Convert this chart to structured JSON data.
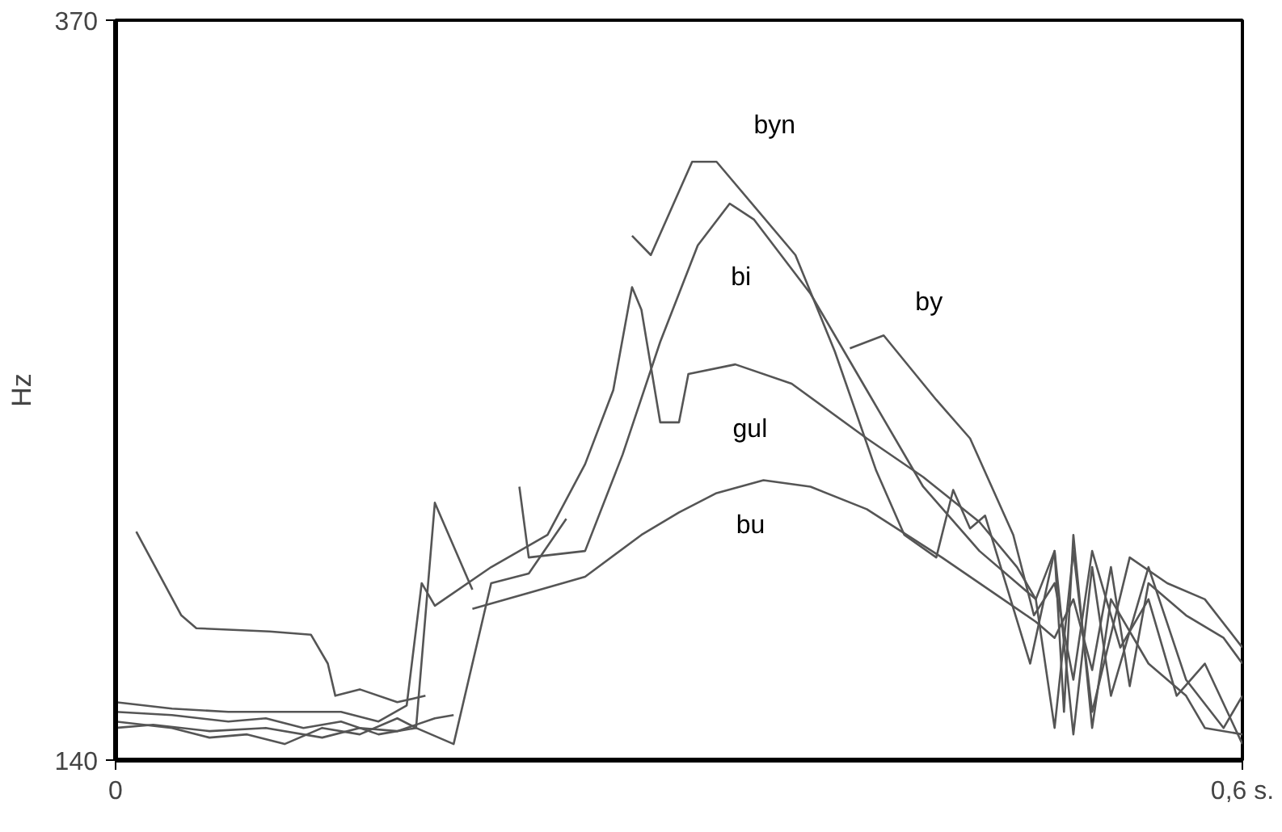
{
  "chart_data": {
    "type": "line",
    "ylabel": "Hz",
    "xlim": [
      0,
      0.6
    ],
    "ylim": [
      140,
      370
    ],
    "xticks": [
      {
        "value": 0,
        "label": "0"
      },
      {
        "value": 0.6,
        "label": "0,6 s."
      }
    ],
    "yticks": [
      140,
      370
    ],
    "line_style": "solid",
    "marker": "none",
    "series": [
      {
        "name": "bu",
        "color": "#555555",
        "x": [
          0,
          0.02,
          0.05,
          0.08,
          0.11,
          0.13,
          0.15,
          0.17,
          0.18,
          0.185,
          0.19,
          0.22,
          0.25,
          0.28,
          0.3,
          0.32,
          0.345,
          0.37,
          0.4,
          0.44,
          0.47,
          0.49,
          0.5,
          0.51,
          0.52,
          0.53,
          0.54,
          0.55,
          0.57,
          0.59,
          0.6
        ],
        "values": [
          150,
          151,
          149,
          150,
          147,
          150,
          149,
          153,
          154,
          null,
          187,
          192,
          197,
          210,
          217,
          223,
          227,
          225,
          218,
          203,
          191,
          183,
          178,
          190,
          168,
          200,
          163,
          195,
          185,
          178,
          170
        ]
      },
      {
        "name": "gul",
        "color": "#555555",
        "x": [
          0,
          0.03,
          0.06,
          0.09,
          0.12,
          0.14,
          0.155,
          0.163,
          0.17,
          0.2,
          0.23,
          0.25,
          0.265,
          0.275,
          0.28,
          0.29,
          0.3,
          0.305,
          0.33,
          0.36,
          0.4,
          0.43,
          0.46,
          0.48,
          0.49,
          0.5,
          0.505,
          0.51,
          0.52,
          0.53,
          0.55,
          0.57,
          0.58,
          0.6
        ],
        "values": [
          158,
          156,
          155,
          155,
          155,
          152,
          157,
          195,
          188,
          200,
          210,
          232,
          255,
          287,
          280,
          245,
          245,
          260,
          263,
          257,
          240,
          228,
          214,
          200,
          190,
          205,
          155,
          210,
          150,
          190,
          170,
          160,
          150,
          148
        ]
      },
      {
        "name": "bi",
        "color": "#555555",
        "x": [
          0,
          0.03,
          0.05,
          0.07,
          0.09,
          0.11,
          0.13,
          0.15,
          0.16,
          0.17,
          0.19,
          0.2,
          0.215,
          0.22,
          0.25,
          0.27,
          0.29,
          0.31,
          0.327,
          0.34,
          0.37,
          0.4,
          0.43,
          0.46,
          0.49,
          0.5,
          0.51,
          0.52,
          0.54,
          0.56,
          0.58,
          0.6
        ],
        "values": [
          152,
          150,
          147,
          148,
          145,
          150,
          148,
          153,
          150,
          220,
          193,
          null,
          225,
          203,
          205,
          235,
          270,
          300,
          313,
          308,
          285,
          255,
          225,
          205,
          190,
          150,
          205,
          155,
          203,
          195,
          190,
          175
        ]
      },
      {
        "name": "byn",
        "color": "#555555",
        "x": [
          0,
          0.03,
          0.06,
          0.08,
          0.1,
          0.12,
          0.14,
          0.16,
          0.18,
          0.2,
          0.22,
          0.24,
          0.26,
          0.275,
          0.285,
          0.307,
          0.32,
          0.362,
          0.383,
          0.405,
          0.42,
          0.437,
          0.446,
          0.455,
          0.463,
          0.487,
          0.5,
          0.51,
          0.52,
          0.53,
          0.55,
          0.57,
          0.59,
          0.6
        ],
        "values": [
          155,
          154,
          152,
          153,
          150,
          152,
          148,
          150,
          145,
          195,
          198,
          215,
          null,
          303,
          297,
          326,
          326,
          297,
          267,
          230,
          210,
          203,
          224,
          212,
          216,
          170,
          205,
          148,
          200,
          160,
          200,
          165,
          150,
          160
        ]
      },
      {
        "name": "by",
        "color": "#555555",
        "x": [
          0.011,
          0.035,
          0.043,
          0.082,
          0.104,
          0.113,
          0.117,
          0.13,
          0.15,
          0.165,
          0.39,
          0.391,
          0.409,
          0.437,
          0.455,
          0.478,
          0.489,
          0.5,
          0.51,
          0.52,
          0.535,
          0.55,
          0.565,
          0.58,
          0.6
        ],
        "values": [
          211,
          185,
          181,
          180,
          179,
          170,
          160,
          162,
          158,
          160,
          null,
          268,
          272,
          252,
          240,
          210,
          185,
          195,
          165,
          205,
          175,
          190,
          160,
          170,
          145
        ]
      }
    ]
  }
}
